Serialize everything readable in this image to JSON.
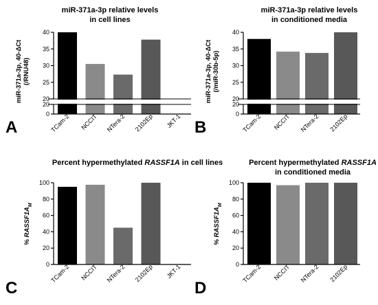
{
  "chart_data": [
    {
      "type": "bar",
      "panel": "A",
      "title": [
        "miR-371a-3p relative levels",
        "in cell lines"
      ],
      "ylabel": [
        "miR-371a-3p, 40-ΔCt",
        "(/RNU48)"
      ],
      "categories": [
        "TCam-2",
        "NCCIT",
        "NTera-2",
        "2102Ep",
        "JKT-1"
      ],
      "values": [
        40,
        30.5,
        27.3,
        37.8,
        0
      ],
      "colors": [
        "#000000",
        "#8a8a8a",
        "#6a6a6a",
        "#585858",
        "#585858"
      ],
      "broken_axis": true,
      "ylim": [
        0,
        40
      ],
      "yticks": [
        0,
        20,
        25,
        30,
        35,
        40
      ],
      "yticklabels": [
        "0",
        "20",
        "25",
        "30",
        "35",
        "40"
      ]
    },
    {
      "type": "bar",
      "panel": "B",
      "title": [
        "miR-371a-3p relative levels",
        "in conditioned media"
      ],
      "ylabel": [
        "miR-371a-3p, 40-ΔCt",
        "(/miR-30b-5p)"
      ],
      "categories": [
        "TCam-2",
        "NCCIT",
        "NTera-2",
        "2102Ep"
      ],
      "values": [
        38,
        34.2,
        33.8,
        40
      ],
      "colors": [
        "#000000",
        "#8a8a8a",
        "#6a6a6a",
        "#585858"
      ],
      "broken_axis": true,
      "ylim": [
        0,
        40
      ],
      "yticks": [
        0,
        20,
        25,
        30,
        35,
        40
      ],
      "yticklabels": [
        "0",
        "20",
        "25",
        "30",
        "35",
        "40"
      ]
    },
    {
      "type": "bar",
      "panel": "C",
      "title_parts": [
        {
          "text": "Percent hypermethylated ",
          "italic": false
        },
        {
          "text": "RASSF1A",
          "italic": true
        },
        {
          "text": " in cell lines",
          "italic": false
        }
      ],
      "ylabel_parts": [
        {
          "text": "% ",
          "italic": false
        },
        {
          "text": "RASSF1A",
          "italic": true
        },
        {
          "text": "M",
          "italic": true,
          "sub": true
        }
      ],
      "categories": [
        "TCam-2",
        "NCCIT",
        "NTera-2",
        "2102Ep",
        "JKT-1"
      ],
      "values": [
        95,
        97.5,
        45,
        100,
        0.5
      ],
      "colors": [
        "#000000",
        "#8a8a8a",
        "#6a6a6a",
        "#585858",
        "#585858"
      ],
      "broken_axis": false,
      "ylim": [
        0,
        100
      ],
      "yticks": [
        0,
        20,
        40,
        60,
        80,
        100
      ],
      "yticklabels": [
        "0",
        "20",
        "40",
        "60",
        "80",
        "100"
      ]
    },
    {
      "type": "bar",
      "panel": "D",
      "title_parts": [
        {
          "text": "Percent hypermethylated ",
          "italic": false
        },
        {
          "text": "RASSF1A",
          "italic": true
        }
      ],
      "title_line2": "in conditioned media",
      "ylabel_parts": [
        {
          "text": "% ",
          "italic": false
        },
        {
          "text": "RASSF1A",
          "italic": true
        },
        {
          "text": "M",
          "italic": true,
          "sub": true
        }
      ],
      "categories": [
        "TCam-2",
        "NCCIT",
        "NTera-2",
        "2102Ep"
      ],
      "values": [
        100,
        97,
        100,
        100
      ],
      "colors": [
        "#000000",
        "#8a8a8a",
        "#6a6a6a",
        "#585858"
      ],
      "broken_axis": false,
      "ylim": [
        0,
        100
      ],
      "yticks": [
        0,
        20,
        40,
        60,
        80,
        100
      ],
      "yticklabels": [
        "0",
        "20",
        "40",
        "60",
        "80",
        "100"
      ]
    }
  ]
}
